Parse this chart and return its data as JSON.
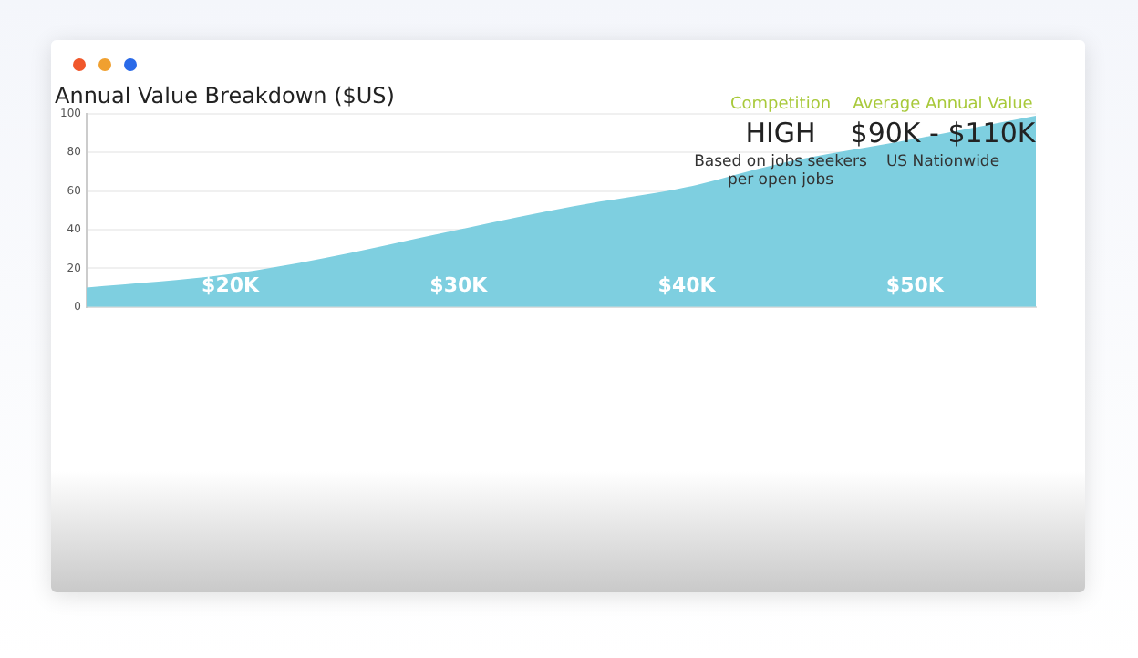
{
  "chart_data": {
    "type": "area",
    "title": "Annual Value Breakdown ($US)",
    "x": [
      13.7,
      20,
      24,
      30,
      35,
      40,
      44,
      50,
      55.3
    ],
    "series": [
      {
        "color": "#7ecfe0",
        "values": [
          10,
          17,
          25,
          40,
          52,
          62,
          74,
          87,
          99
        ]
      }
    ],
    "xlim": [
      13.7,
      55.3
    ],
    "xticks": [
      {
        "value": 20,
        "label": "$20K"
      },
      {
        "value": 30,
        "label": "$30K"
      },
      {
        "value": 40,
        "label": "$40K"
      },
      {
        "value": 50,
        "label": "$50K"
      }
    ],
    "ylim": [
      0,
      100
    ],
    "yticks": [
      0,
      20,
      40,
      60,
      80,
      100
    ],
    "grid": "y",
    "legend": false,
    "annotations": [
      "Competition",
      "HIGH",
      "Based on jobs seekers per open jobs",
      "Average Annual Value",
      "$90K - $110K",
      "US Nationwide"
    ]
  }
}
